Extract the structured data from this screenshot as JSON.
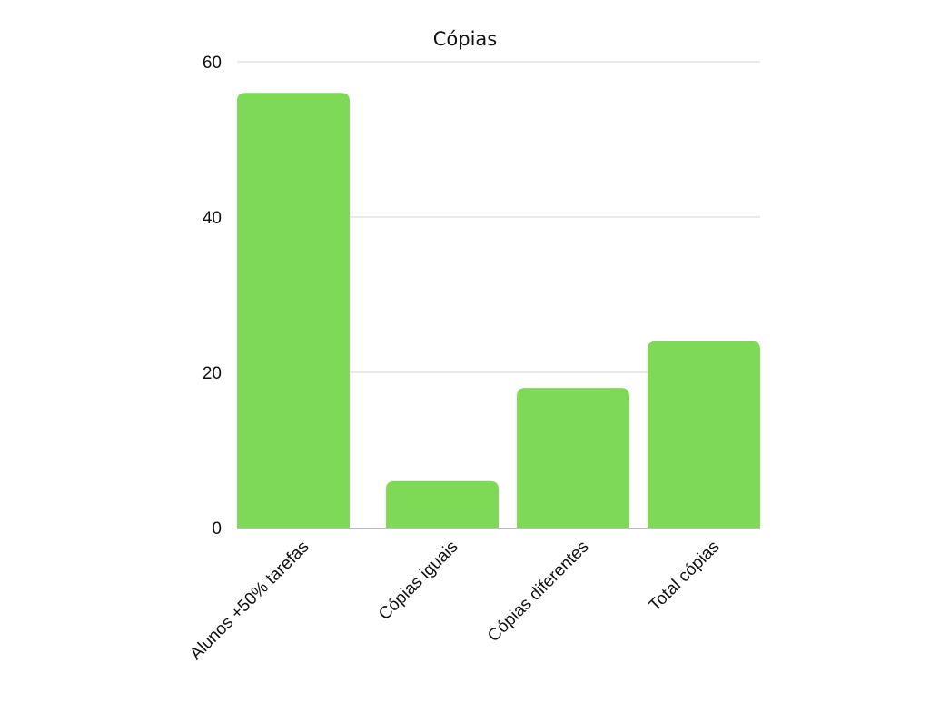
{
  "chart_data": {
    "type": "bar",
    "title": "Cópias",
    "xlabel": "",
    "ylabel": "",
    "categories": [
      "Alunos +50% tarefas",
      "Cópias iguais",
      "Cópias diferentes",
      "Total cópias"
    ],
    "values": [
      56,
      6,
      18,
      24
    ],
    "ylim": [
      0,
      60
    ],
    "yticks": [
      0,
      20,
      40,
      60
    ],
    "grid": true,
    "legend": "none",
    "colors": {
      "bar": "#7ed957",
      "grid": "#dcdcdc",
      "text": "#111111"
    }
  }
}
